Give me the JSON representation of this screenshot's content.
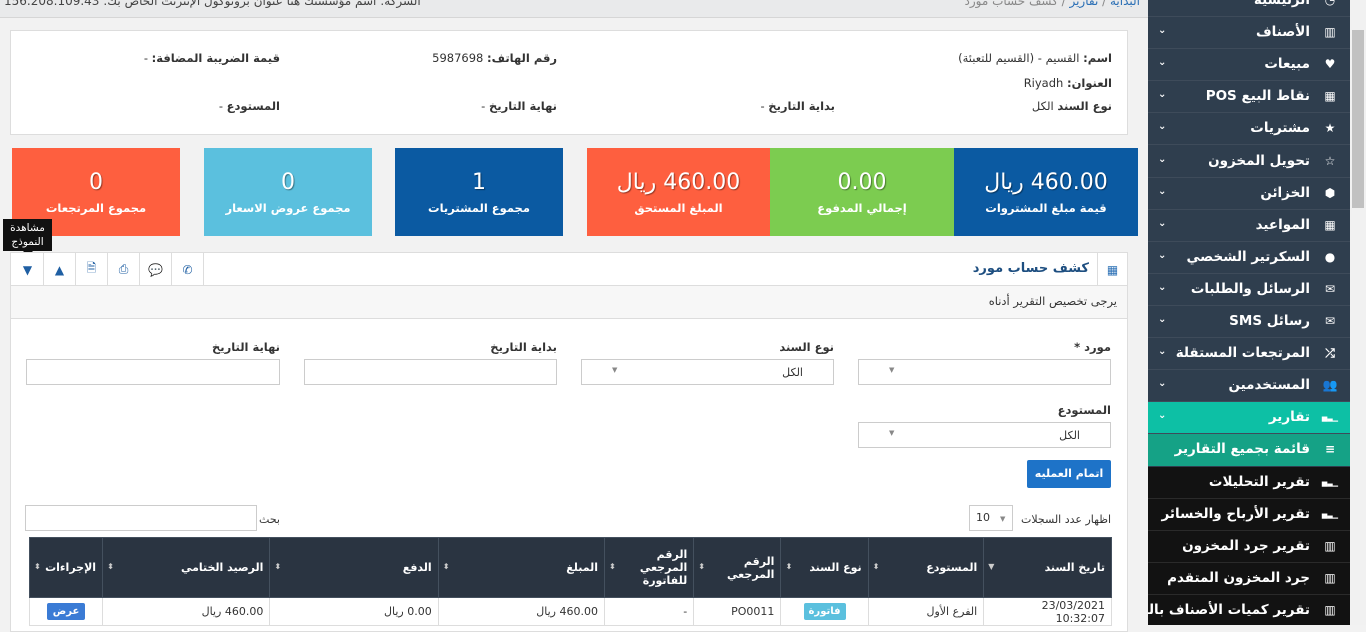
{
  "topbar": {
    "breadcrumb": [
      "البداية",
      "تقارير",
      "كشف حساب مورد"
    ],
    "info": "الشركة: اسم مؤسستك هنا عنوان بروتوكول الإنترنت الخاص بك: 156.208.109.43"
  },
  "info": {
    "name_label": "اسم:",
    "name": "القسيم - (القسيم للتعبئة)",
    "phone_label": "رقم الهاتف:",
    "phone": "5987698",
    "vat_label": "قيمة الضريبة المضافة:",
    "vat": "-",
    "address_label": "العنوان:",
    "address": "Riyadh",
    "type_label": "نوع السند",
    "type": "الكل",
    "start_label": "بداية التاريخ",
    "start": "-",
    "end_label": "نهاية التاريخ",
    "end": "-",
    "store_label": "المستودع",
    "store": "-"
  },
  "stats": [
    {
      "value": "460.00 ريال",
      "label": "قيمة مبلغ المشتروات",
      "color": "#0b5aa2"
    },
    {
      "value": "0.00",
      "label": "إجمالي المدفوع",
      "color": "#7ccc50"
    },
    {
      "value": "460.00 ريال",
      "label": "المبلغ المستحق",
      "color": "#fe5f3f"
    },
    {
      "value": "1",
      "label": "مجموع المشتريات",
      "color": "#0b5aa2"
    },
    {
      "value": "0",
      "label": "مجموع عروض الاسعار",
      "color": "#5bc0de"
    },
    {
      "value": "0",
      "label": "مجموع المرتجعات",
      "color": "#fe5f3f"
    }
  ],
  "panel": {
    "title": "كشف حساب مورد",
    "subtitle": "يرجى تخصيص التقرير أدناه",
    "tooltip": "مشاهدة النموذج",
    "tools": [
      "collapse-down-icon",
      "collapse-up-icon",
      "excel-icon",
      "print-icon",
      "comment-icon",
      "whatsapp-icon"
    ]
  },
  "form": {
    "supplier_label": "مورد *",
    "supplier_value": "",
    "type_label": "نوع السند",
    "type_value": "الكل",
    "start_label": "بداية التاريخ",
    "start_value": "",
    "end_label": "نهاية التاريخ",
    "end_value": "",
    "store_label": "المستودع",
    "store_value": "الكل",
    "submit": "اتمام العمليه"
  },
  "table_controls": {
    "show_label": "اظهار عدد السجلات",
    "page_size": "10",
    "search_label": "بحث",
    "search_value": ""
  },
  "table": {
    "headers": [
      "تاريخ السند",
      "المستودع",
      "نوع السند",
      "الرقم المرجعي",
      "الرقم المرجعي للفاتورة",
      "المبلغ",
      "الدفع",
      "الرصيد الختامي",
      "الإجراءات"
    ],
    "rows": [
      {
        "date": "23/03/2021 10:32:07",
        "store": "الفرع الأول",
        "type": "فاتورة",
        "ref": "PO0011",
        "inv_ref": "-",
        "amount": "460.00 ريال",
        "paid": "0.00 ريال",
        "balance": "460.00 ريال",
        "action": "عرض"
      }
    ]
  },
  "sidebar": {
    "items": [
      {
        "label": "الرئيسية",
        "icon": "dashboard-icon",
        "ch": false
      },
      {
        "label": "الأصناف",
        "icon": "barcode-icon",
        "ch": true
      },
      {
        "label": "مبيعات",
        "icon": "heart-icon",
        "ch": true
      },
      {
        "label": "نقاط البيع POS",
        "icon": "th-large-icon",
        "ch": true
      },
      {
        "label": "مشتريات",
        "icon": "star-icon",
        "ch": true
      },
      {
        "label": "تحويل المخزون",
        "icon": "star-outline-icon",
        "ch": true
      },
      {
        "label": "الخزائن",
        "icon": "cube-icon",
        "ch": true
      },
      {
        "label": "المواعيد",
        "icon": "calendar-icon",
        "ch": true
      },
      {
        "label": "السكرتير الشخصي",
        "icon": "user-icon",
        "ch": true
      },
      {
        "label": "الرسائل والطلبات",
        "icon": "envelope-icon",
        "ch": true
      },
      {
        "label": "رسائل SMS",
        "icon": "envelope-icon",
        "ch": true
      },
      {
        "label": "المرتجعات المستقلة",
        "icon": "random-icon",
        "ch": true
      },
      {
        "label": "المستخدمين",
        "icon": "users-icon",
        "ch": true
      },
      {
        "label": "تقارير",
        "icon": "bar-chart-icon",
        "ch": true,
        "state": "act"
      },
      {
        "label": "قائمة بجميع التقارير",
        "icon": "list-icon",
        "ch": false,
        "state": "subact"
      },
      {
        "label": "تقرير التحليلات",
        "icon": "bar-chart-icon",
        "ch": false,
        "state": "dark"
      },
      {
        "label": "تقرير الأرباح والخسائر",
        "icon": "bar-chart-icon",
        "ch": false,
        "state": "dark"
      },
      {
        "label": "تقرير جرد المخزون",
        "icon": "barcode-icon",
        "ch": false,
        "state": "dark"
      },
      {
        "label": "جرد المخزون المتقدم",
        "icon": "barcode-icon",
        "ch": false,
        "state": "dark"
      },
      {
        "label": "تقرير كميات الأصناف بالفروع",
        "icon": "barcode-icon",
        "ch": false,
        "state": "dark"
      }
    ]
  }
}
